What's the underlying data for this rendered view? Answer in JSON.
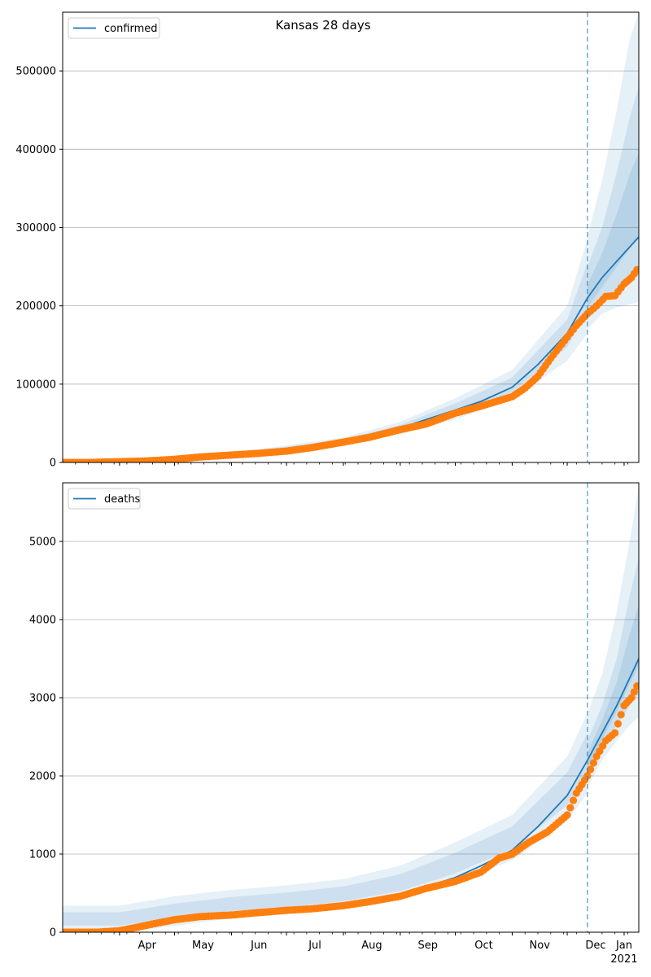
{
  "figure_title": "Kansas 28 days",
  "colors": {
    "model": "#1f77b4",
    "observed": "#ff7f0e",
    "band": "#1f77b4",
    "grid": "#b0b0b0",
    "forecast_line": "#1f77b4"
  },
  "x_axis": {
    "type": "date",
    "range": [
      "2020-03-01",
      "2021-01-09"
    ],
    "month_ticks": [
      {
        "label": "Apr",
        "date": "2020-04-01"
      },
      {
        "label": "May",
        "date": "2020-05-01"
      },
      {
        "label": "Jun",
        "date": "2020-06-01"
      },
      {
        "label": "Jul",
        "date": "2020-07-01"
      },
      {
        "label": "Aug",
        "date": "2020-08-01"
      },
      {
        "label": "Sep",
        "date": "2020-09-01"
      },
      {
        "label": "Oct",
        "date": "2020-10-01"
      },
      {
        "label": "Nov",
        "date": "2020-11-01"
      },
      {
        "label": "Dec",
        "date": "2020-12-01"
      },
      {
        "label": "Jan",
        "date": "2021-01-01"
      }
    ],
    "year_label": "2021",
    "forecast_start": "2020-12-12"
  },
  "chart_data": [
    {
      "type": "line",
      "legend": "confirmed",
      "legend_position": "top-left",
      "grid": "horizontal",
      "ylim": [
        0,
        575000
      ],
      "yticks": [
        0,
        100000,
        200000,
        300000,
        400000,
        500000
      ],
      "ytick_labels": [
        "0",
        "100000",
        "200000",
        "300000",
        "400000",
        "500000"
      ],
      "model_series": {
        "x": [
          "2020-03-01",
          "2020-04-01",
          "2020-05-01",
          "2020-06-01",
          "2020-07-01",
          "2020-08-01",
          "2020-09-01",
          "2020-10-01",
          "2020-10-15",
          "2020-11-01",
          "2020-11-15",
          "2020-12-01",
          "2020-12-12",
          "2020-12-20",
          "2020-12-28",
          "2021-01-04",
          "2021-01-09"
        ],
        "y": [
          0,
          1000,
          4000,
          10000,
          15000,
          27000,
          44000,
          67000,
          78000,
          96000,
          125000,
          165000,
          210000,
          236000,
          257000,
          275000,
          288000
        ]
      },
      "band_outer": {
        "x": [
          "2020-03-01",
          "2020-06-01",
          "2020-08-01",
          "2020-09-01",
          "2020-10-01",
          "2020-11-01",
          "2020-12-01",
          "2020-12-12"
        ],
        "lower": [
          0,
          8000,
          22000,
          36000,
          55000,
          80000,
          130000,
          165000
        ],
        "upper": [
          1000,
          12000,
          32000,
          52000,
          82000,
          118000,
          200000,
          285000
        ]
      },
      "forecast_bands": {
        "x": [
          "2020-12-12",
          "2020-12-20",
          "2020-12-28",
          "2021-01-04",
          "2021-01-09"
        ],
        "outer_lower": [
          170000,
          190000,
          198000,
          202000,
          205000
        ],
        "outer_upper": [
          290000,
          360000,
          450000,
          540000,
          575000
        ],
        "mid_lower": [
          185000,
          205000,
          220000,
          232000,
          240000
        ],
        "mid_upper": [
          250000,
          300000,
          370000,
          440000,
          480000
        ]
      },
      "observed_series": {
        "x": [
          "2020-03-01",
          "2020-03-15",
          "2020-04-01",
          "2020-04-15",
          "2020-05-01",
          "2020-05-15",
          "2020-06-01",
          "2020-06-15",
          "2020-07-01",
          "2020-07-15",
          "2020-08-01",
          "2020-08-15",
          "2020-09-01",
          "2020-09-15",
          "2020-10-01",
          "2020-10-15",
          "2020-11-01",
          "2020-11-08",
          "2020-11-15",
          "2020-11-22",
          "2020-12-01",
          "2020-12-06",
          "2020-12-12",
          "2020-12-17",
          "2020-12-22",
          "2020-12-27",
          "2021-01-01",
          "2021-01-05",
          "2021-01-08"
        ],
        "y": [
          0,
          0,
          1000,
          1800,
          4000,
          7000,
          9500,
          11500,
          14500,
          19000,
          26000,
          32000,
          42000,
          49000,
          63000,
          72000,
          84000,
          95000,
          110000,
          133000,
          160000,
          175000,
          190000,
          200000,
          212000,
          213000,
          228000,
          236000,
          246000
        ]
      }
    },
    {
      "type": "line",
      "legend": "deaths",
      "legend_position": "top-left",
      "grid": "horizontal",
      "ylim": [
        0,
        5750
      ],
      "yticks": [
        0,
        1000,
        2000,
        3000,
        4000,
        5000
      ],
      "ytick_labels": [
        "0",
        "1000",
        "2000",
        "3000",
        "4000",
        "5000"
      ],
      "model_series": {
        "x": [
          "2020-03-01",
          "2020-04-01",
          "2020-05-01",
          "2020-06-01",
          "2020-07-01",
          "2020-08-01",
          "2020-09-01",
          "2020-10-01",
          "2020-10-15",
          "2020-11-01",
          "2020-11-15",
          "2020-12-01",
          "2020-12-12",
          "2020-12-20",
          "2020-12-28",
          "2021-01-04",
          "2021-01-09"
        ],
        "y": [
          0,
          30,
          150,
          220,
          270,
          340,
          480,
          700,
          850,
          1050,
          1350,
          1750,
          2200,
          2550,
          2900,
          3250,
          3500
        ]
      },
      "band_outer": {
        "x": [
          "2020-03-01",
          "2020-04-01",
          "2020-05-01",
          "2020-06-01",
          "2020-07-01",
          "2020-08-01",
          "2020-09-01",
          "2020-10-01",
          "2020-11-01",
          "2020-12-01",
          "2020-12-12"
        ],
        "lower": [
          0,
          0,
          80,
          180,
          230,
          300,
          420,
          620,
          920,
          1420,
          1780
        ],
        "upper": [
          340,
          340,
          460,
          540,
          600,
          680,
          850,
          1150,
          1500,
          2250,
          2800
        ]
      },
      "forecast_bands": {
        "x": [
          "2020-12-12",
          "2020-12-20",
          "2020-12-28",
          "2021-01-04",
          "2021-01-09"
        ],
        "outer_lower": [
          1850,
          2200,
          2450,
          2650,
          2750
        ],
        "outer_upper": [
          2800,
          3300,
          4100,
          5000,
          5700
        ],
        "mid_lower": [
          2000,
          2350,
          2650,
          2900,
          3050
        ],
        "mid_upper": [
          2450,
          2900,
          3500,
          4300,
          4800
        ]
      },
      "observed_series": {
        "x": [
          "2020-03-01",
          "2020-03-20",
          "2020-04-01",
          "2020-04-10",
          "2020-04-20",
          "2020-05-01",
          "2020-05-15",
          "2020-06-01",
          "2020-06-15",
          "2020-07-01",
          "2020-07-15",
          "2020-08-01",
          "2020-08-15",
          "2020-09-01",
          "2020-09-15",
          "2020-10-01",
          "2020-10-15",
          "2020-10-25",
          "2020-11-01",
          "2020-11-10",
          "2020-11-20",
          "2020-12-01",
          "2020-12-06",
          "2020-12-12",
          "2020-12-17",
          "2020-12-22",
          "2020-12-27",
          "2021-01-01",
          "2021-01-05",
          "2021-01-08"
        ],
        "y": [
          0,
          0,
          20,
          60,
          110,
          160,
          200,
          220,
          250,
          280,
          300,
          340,
          390,
          460,
          560,
          650,
          770,
          950,
          1000,
          1150,
          1280,
          1500,
          1780,
          2000,
          2250,
          2450,
          2550,
          2900,
          3000,
          3150
        ]
      }
    }
  ]
}
